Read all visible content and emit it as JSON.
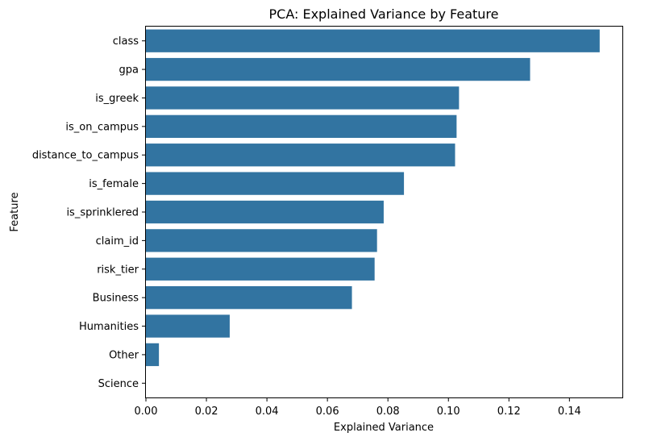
{
  "chart_data": {
    "type": "bar",
    "orientation": "horizontal",
    "title": "PCA: Explained Variance by Feature",
    "xlabel": "Explained Variance",
    "ylabel": "Feature",
    "categories": [
      "class",
      "gpa",
      "is_greek",
      "is_on_campus",
      "distance_to_campus",
      "is_female",
      "is_sprinklered",
      "claim_id",
      "risk_tier",
      "Business",
      "Humanities",
      "Other",
      "Science"
    ],
    "values": [
      0.15,
      0.127,
      0.1035,
      0.1027,
      0.1022,
      0.0853,
      0.0786,
      0.0764,
      0.0756,
      0.0681,
      0.0277,
      0.0043,
      0.0
    ],
    "xlim": [
      0,
      0.1575
    ],
    "xticks": [
      0.0,
      0.02,
      0.04,
      0.06,
      0.08,
      0.1,
      0.12,
      0.14
    ],
    "xtick_labels": [
      "0.00",
      "0.02",
      "0.04",
      "0.06",
      "0.08",
      "0.10",
      "0.12",
      "0.14"
    ],
    "bar_color": "#3274a1",
    "grid": false,
    "legend": "none"
  }
}
